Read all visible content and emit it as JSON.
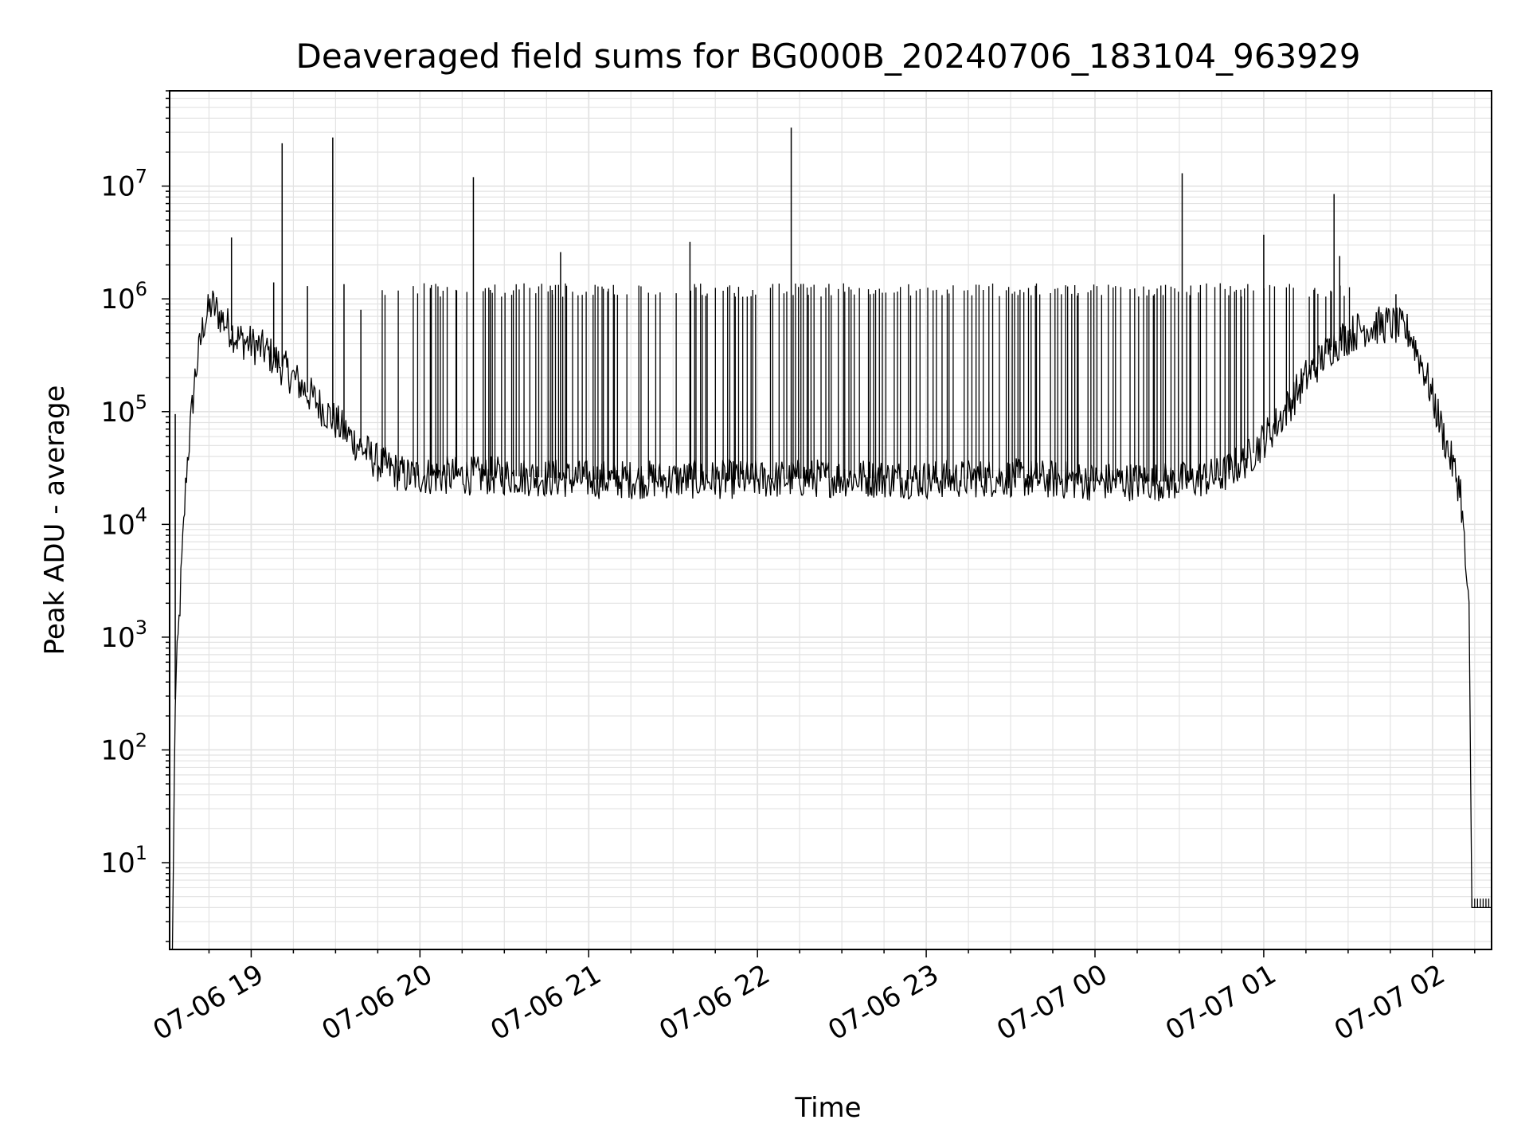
{
  "chart_data": {
    "type": "line",
    "title": "Deaveraged field sums for BG000B_20240706_183104_963929",
    "xlabel": "Time",
    "ylabel": "Peak ADU - average",
    "yscale": "log",
    "ylim": [
      1.7,
      70000000
    ],
    "xlim": [
      "2024-07-06 18:31",
      "2024-07-07 02:21"
    ],
    "grid": "on (major and minor)",
    "line_color": "#000000",
    "x_ticks": [
      {
        "t": "2024-07-06 19:00",
        "label": "07-06 19"
      },
      {
        "t": "2024-07-06 20:00",
        "label": "07-06 20"
      },
      {
        "t": "2024-07-06 21:00",
        "label": "07-06 21"
      },
      {
        "t": "2024-07-06 22:00",
        "label": "07-06 22"
      },
      {
        "t": "2024-07-06 23:00",
        "label": "07-06 23"
      },
      {
        "t": "2024-07-07 00:00",
        "label": "07-07 00"
      },
      {
        "t": "2024-07-07 01:00",
        "label": "07-07 01"
      },
      {
        "t": "2024-07-07 02:00",
        "label": "07-07 02"
      }
    ],
    "y_ticks": [
      {
        "v": 10,
        "base": "10",
        "exp": "1"
      },
      {
        "v": 100,
        "base": "10",
        "exp": "2"
      },
      {
        "v": 1000,
        "base": "10",
        "exp": "3"
      },
      {
        "v": 10000,
        "base": "10",
        "exp": "4"
      },
      {
        "v": 100000,
        "base": "10",
        "exp": "5"
      },
      {
        "v": 1000000,
        "base": "10",
        "exp": "6"
      },
      {
        "v": 10000000,
        "base": "10",
        "exp": "7"
      }
    ],
    "series": [
      {
        "baseline": [
          [
            "2024-07-06 18:32",
            1.7
          ],
          [
            "2024-07-06 18:33",
            280
          ],
          [
            "2024-07-06 18:35",
            3000
          ],
          [
            "2024-07-06 18:37",
            30000
          ],
          [
            "2024-07-06 18:40",
            200000
          ],
          [
            "2024-07-06 18:43",
            600000
          ],
          [
            "2024-07-06 18:46",
            900000
          ],
          [
            "2024-07-06 18:49",
            700000
          ],
          [
            "2024-07-06 18:55",
            450000
          ],
          [
            "2024-07-06 19:05",
            350000
          ],
          [
            "2024-07-06 19:15",
            200000
          ],
          [
            "2024-07-06 19:25",
            110000
          ],
          [
            "2024-07-06 19:35",
            60000
          ],
          [
            "2024-07-06 19:45",
            35000
          ],
          [
            "2024-07-06 19:55",
            27000
          ],
          [
            "2024-07-06 20:30",
            27000
          ],
          [
            "2024-07-06 21:00",
            25000
          ],
          [
            "2024-07-06 21:30",
            25000
          ],
          [
            "2024-07-06 22:00",
            25000
          ],
          [
            "2024-07-06 22:30",
            26000
          ],
          [
            "2024-07-06 23:00",
            25000
          ],
          [
            "2024-07-06 23:30",
            26000
          ],
          [
            "2024-07-07 00:00",
            24000
          ],
          [
            "2024-07-07 00:30",
            24000
          ],
          [
            "2024-07-07 00:45",
            27000
          ],
          [
            "2024-07-07 00:55",
            40000
          ],
          [
            "2024-07-07 01:05",
            80000
          ],
          [
            "2024-07-07 01:15",
            200000
          ],
          [
            "2024-07-07 01:25",
            400000
          ],
          [
            "2024-07-07 01:35",
            550000
          ],
          [
            "2024-07-07 01:45",
            600000
          ],
          [
            "2024-07-07 01:52",
            500000
          ],
          [
            "2024-07-07 01:58",
            200000
          ],
          [
            "2024-07-07 02:05",
            50000
          ],
          [
            "2024-07-07 02:10",
            20000
          ],
          [
            "2024-07-07 02:13",
            1500
          ],
          [
            "2024-07-07 02:14",
            4
          ],
          [
            "2024-07-07 02:21",
            4
          ]
        ],
        "spikes": [
          [
            "2024-07-06 18:33",
            95000
          ],
          [
            "2024-07-06 18:53",
            3500000
          ],
          [
            "2024-07-06 19:11",
            24000000
          ],
          [
            "2024-07-06 19:29",
            27000000
          ],
          [
            "2024-07-06 19:08",
            1400000
          ],
          [
            "2024-07-06 19:20",
            1300000
          ],
          [
            "2024-07-06 19:33",
            1350000
          ],
          [
            "2024-07-06 19:39",
            800000
          ],
          [
            "2024-07-06 20:19",
            12000000
          ],
          [
            "2024-07-06 20:25",
            1200000
          ],
          [
            "2024-07-06 20:47",
            1200000
          ],
          [
            "2024-07-06 20:50",
            2600000
          ],
          [
            "2024-07-06 21:36",
            3200000
          ],
          [
            "2024-07-06 22:12",
            33000000
          ],
          [
            "2024-07-07 00:31",
            13000000
          ],
          [
            "2024-07-07 01:00",
            3700000
          ],
          [
            "2024-07-07 01:25",
            8500000
          ],
          [
            "2024-07-07 01:27",
            2400000
          ],
          [
            "2024-07-07 01:47",
            1100000
          ]
        ],
        "dense_spike_band": {
          "from": "2024-07-06 19:45",
          "to": "2024-07-07 01:30",
          "peak": 1200000
        }
      }
    ]
  }
}
